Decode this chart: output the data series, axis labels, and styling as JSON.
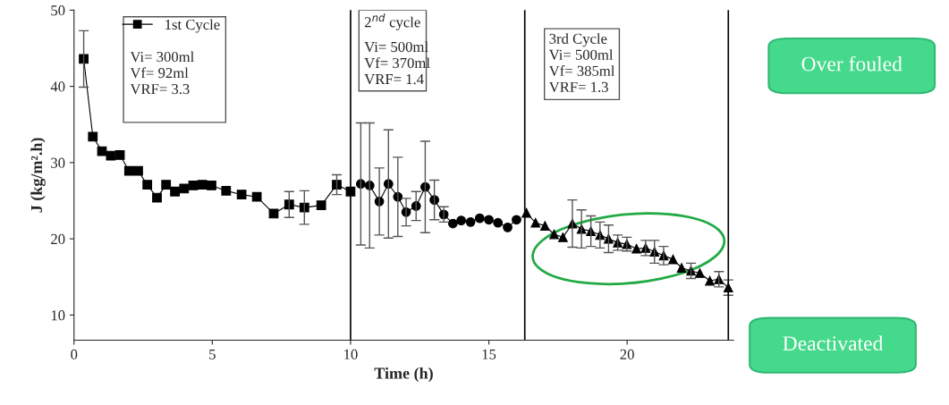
{
  "chart_data": {
    "type": "line",
    "xlabel": "Time (h)",
    "ylabel": "J (kg/m².h)",
    "xlim": [
      0,
      23.85
    ],
    "ylim": [
      6.7,
      50
    ],
    "xticks": [
      0,
      5,
      10,
      15,
      20
    ],
    "yticks": [
      10,
      20,
      30,
      40,
      50
    ],
    "grid": false,
    "legend": "top left",
    "line_style": "solid",
    "series": [
      {
        "name": "1st Cycle",
        "color": "#000000",
        "marker": "square",
        "x": [
          0.35,
          0.68,
          1.01,
          1.33,
          1.66,
          1.99,
          2.32,
          2.65,
          3.0,
          3.33,
          3.65,
          3.98,
          4.31,
          4.64,
          4.97,
          5.5,
          6.06,
          6.61,
          7.22,
          7.78,
          8.33,
          8.94,
          9.5,
          10.0
        ],
        "values": [
          43.6,
          33.4,
          31.5,
          30.9,
          31.0,
          28.9,
          28.9,
          27.1,
          25.4,
          27.1,
          26.2,
          26.6,
          27.0,
          27.1,
          27.0,
          26.3,
          25.8,
          25.5,
          23.3,
          24.5,
          24.1,
          24.4,
          27.1,
          26.2
        ],
        "errors": [
          3.7,
          null,
          null,
          null,
          null,
          null,
          null,
          null,
          null,
          null,
          null,
          null,
          null,
          null,
          null,
          null,
          null,
          null,
          null,
          1.7,
          2.2,
          null,
          1.3,
          null
        ]
      },
      {
        "color": "#000000",
        "marker": "circle",
        "x": [
          10.37,
          10.69,
          11.04,
          11.37,
          11.71,
          12.01,
          12.37,
          12.7,
          13.03,
          13.37,
          13.7,
          14.0,
          14.34,
          14.67,
          15.0,
          15.33,
          15.68,
          16.0
        ],
        "values": [
          27.2,
          27.0,
          24.9,
          27.2,
          25.5,
          23.5,
          24.3,
          26.8,
          25.1,
          23.2,
          22.0,
          22.4,
          22.2,
          22.7,
          22.5,
          22.1,
          21.5,
          22.5
        ],
        "errors": [
          8.0,
          8.2,
          4.4,
          7.1,
          5.2,
          1.8,
          1.9,
          6.0,
          2.6,
          1.0,
          null,
          null,
          null,
          null,
          null,
          null,
          null,
          null
        ]
      },
      {
        "color": "#000000",
        "marker": "triangle",
        "x": [
          16.36,
          16.69,
          17.03,
          17.36,
          17.68,
          18.02,
          18.35,
          18.69,
          19.02,
          19.33,
          19.66,
          19.99,
          20.34,
          20.67,
          20.99,
          21.32,
          21.66,
          21.97,
          22.31,
          22.63,
          22.99,
          23.32,
          23.66
        ],
        "values": [
          23.4,
          22.1,
          21.7,
          20.6,
          20.2,
          22.0,
          21.3,
          21.0,
          20.5,
          20.0,
          19.5,
          19.3,
          18.7,
          18.8,
          18.3,
          17.8,
          17.3,
          16.2,
          15.8,
          15.5,
          14.5,
          14.7,
          13.6
        ],
        "errors": [
          null,
          null,
          null,
          null,
          null,
          3.1,
          2.5,
          2.0,
          1.7,
          1.8,
          1.0,
          0.9,
          null,
          1.0,
          1.5,
          1.2,
          null,
          null,
          1.0,
          null,
          null,
          1.0,
          1.0
        ]
      }
    ],
    "ref_lines": [
      {
        "axis": "x",
        "value": 10,
        "color": "#000000"
      },
      {
        "axis": "x",
        "value": 16.3,
        "color": "#000000"
      },
      {
        "axis": "x",
        "value": 23.66,
        "color": "#000000"
      }
    ],
    "annotations": [
      "Vi= 300ml\nVf= 92ml\nVRF= 3.3",
      "2$^{nd}$ cycle",
      "Vi= 500ml\nVf= 370ml\nVRF= 1.4",
      "3rd Cycle\nVi= 500ml\nVf= 385ml\nVRF= 1.3",
      "Over fouled",
      "Deactivated"
    ]
  }
}
